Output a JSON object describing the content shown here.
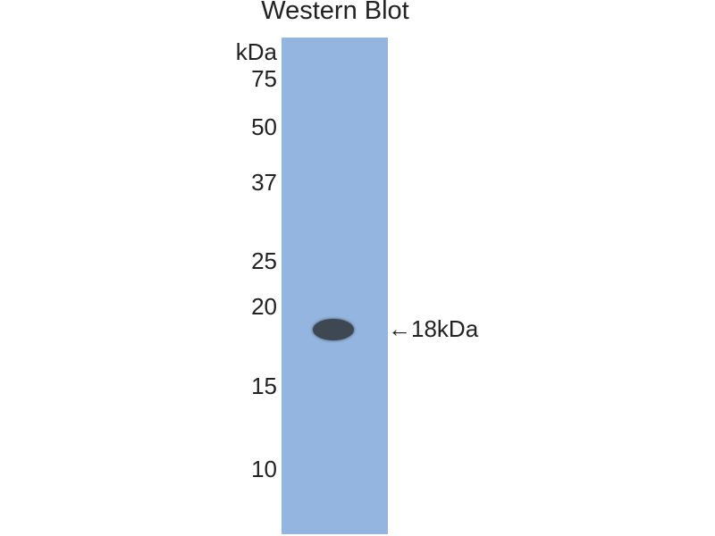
{
  "title": "Western Blot",
  "unit_label": "kDa",
  "markers": [
    "75",
    "50",
    "37",
    "25",
    "20",
    "15",
    "10"
  ],
  "band_annotation": "←18kDa",
  "colors": {
    "membrane": "#93b5df",
    "band": "#3d4853"
  }
}
